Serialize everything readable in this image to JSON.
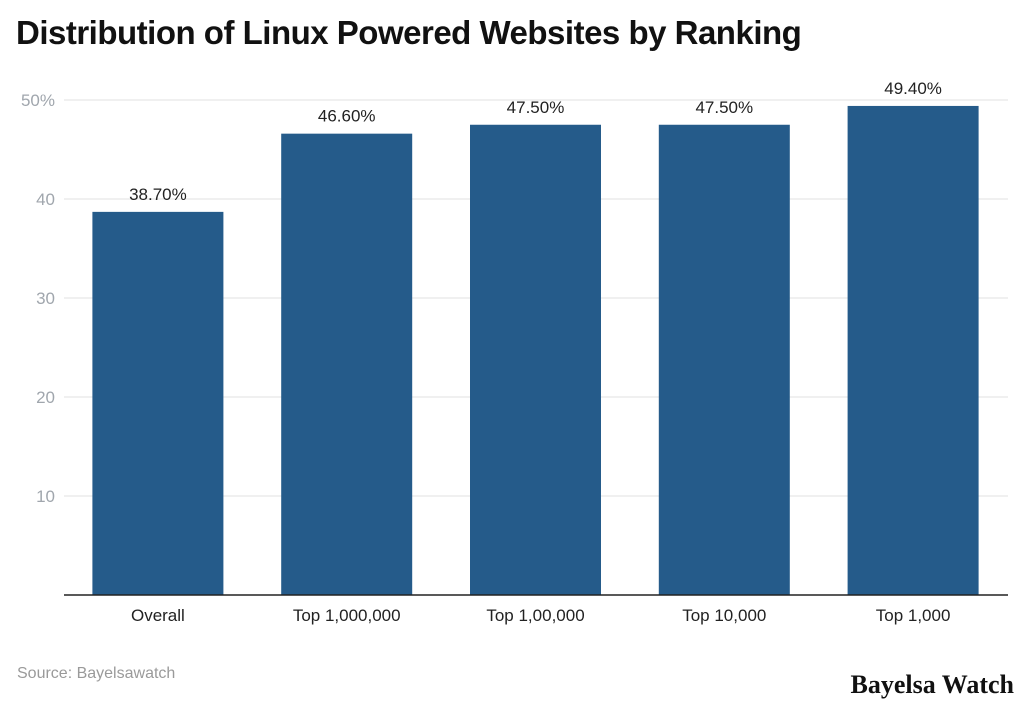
{
  "chart_data": {
    "type": "bar",
    "title": "Distribution of Linux Powered Websites by Ranking",
    "categories": [
      "Overall",
      "Top 1,000,000",
      "Top 1,00,000",
      "Top 10,000",
      "Top 1,000"
    ],
    "values": [
      38.7,
      46.6,
      47.5,
      47.5,
      49.4
    ],
    "data_labels": [
      "38.70%",
      "46.60%",
      "47.50%",
      "47.50%",
      "49.40%"
    ],
    "ylim": [
      0,
      50
    ],
    "yticks": [
      10,
      20,
      30,
      40,
      50
    ],
    "ytick_labels": [
      "10",
      "20",
      "30",
      "40",
      "50%"
    ],
    "xlabel": "",
    "ylabel": "",
    "grid": true,
    "bar_color": "#255b8a"
  },
  "source": "Source: Bayelsawatch",
  "brand": "Bayelsa Watch"
}
